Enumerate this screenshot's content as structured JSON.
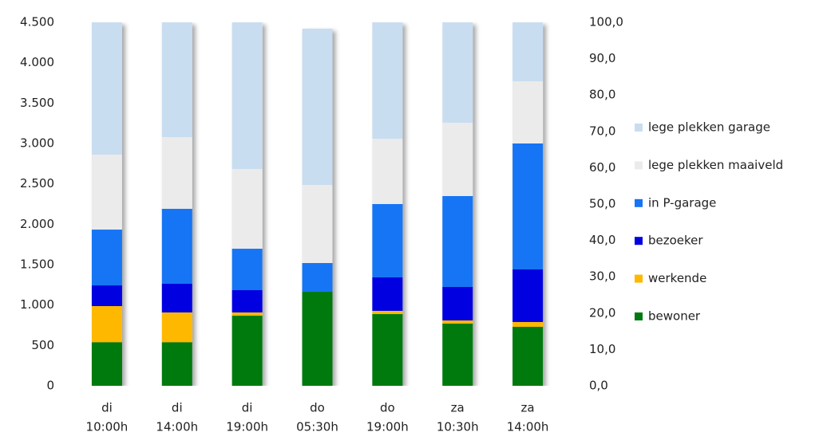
{
  "chart_data": {
    "type": "stacked-bar",
    "categories": [
      [
        "di",
        "10:00h"
      ],
      [
        "di",
        "14:00h"
      ],
      [
        "di",
        "19:00h"
      ],
      [
        "do",
        "05:30h"
      ],
      [
        "do",
        "19:00h"
      ],
      [
        "za",
        "10:30h"
      ],
      [
        "za",
        "14:00h"
      ]
    ],
    "series": [
      {
        "name": "bewoner",
        "color": "#007a10",
        "values": [
          540,
          540,
          868,
          1164,
          888,
          770,
          730
        ]
      },
      {
        "name": "werkende",
        "color": "#ffb800",
        "values": [
          447,
          368,
          40,
          0,
          40,
          39,
          60
        ]
      },
      {
        "name": "bezoeker",
        "color": "#0000e0",
        "values": [
          256,
          355,
          276,
          0,
          414,
          415,
          651
        ]
      },
      {
        "name": "in P-garage",
        "color": "#1774f4",
        "values": [
          691,
          928,
          513,
          356,
          908,
          1125,
          1559
        ]
      },
      {
        "name": "lege plekken maaiveld",
        "color": "#ebebeb",
        "values": [
          928,
          888,
          987,
          967,
          809,
          908,
          770
        ]
      },
      {
        "name": "lege plekken garage",
        "color": "#c9ddf1",
        "values": [
          1638,
          1421,
          1816,
          1934,
          1441,
          1243,
          730
        ]
      }
    ],
    "ylim": [
      0,
      4500
    ],
    "yticks": [
      0,
      500,
      {
        "value": 1000,
        "label": "1.000"
      },
      {
        "value": 1500,
        "label": "1.500"
      },
      {
        "value": 2000,
        "label": "2.000"
      },
      {
        "value": 2500,
        "label": "2.500"
      },
      {
        "value": 3000,
        "label": "3.000"
      },
      {
        "value": 3500,
        "label": "3.500"
      },
      {
        "value": 4000,
        "label": "4.000"
      },
      {
        "value": 4500,
        "label": "4.500"
      }
    ],
    "y2lim": [
      0,
      100
    ],
    "y2ticks": [
      {
        "value": 0,
        "label": "0,0"
      },
      {
        "value": 10,
        "label": "10,0"
      },
      {
        "value": 20,
        "label": "20,0"
      },
      {
        "value": 30,
        "label": "30,0"
      },
      {
        "value": 40,
        "label": "40,0"
      },
      {
        "value": 50,
        "label": "50,0"
      },
      {
        "value": 60,
        "label": "60,0"
      },
      {
        "value": 70,
        "label": "70,0"
      },
      {
        "value": 80,
        "label": "80,0"
      },
      {
        "value": 90,
        "label": "90,0"
      },
      {
        "value": 100,
        "label": "100,0"
      }
    ],
    "grid": false
  }
}
